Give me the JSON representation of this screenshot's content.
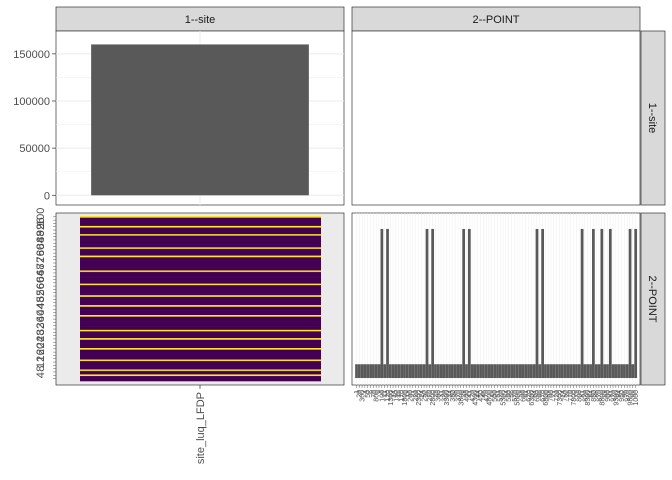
{
  "chart_data": {
    "type": "facet-grid",
    "facet_cols": [
      "1--site",
      "2--POINT"
    ],
    "facet_rows": [
      "1--site",
      "2--POINT"
    ],
    "panels": [
      {
        "row": "1--site",
        "col": "1--site",
        "type": "bar",
        "categories": [
          "site_luq_LFDP"
        ],
        "values": [
          160000
        ],
        "ylim": [
          0,
          170000
        ],
        "yticks": [
          0,
          50000,
          100000,
          150000
        ],
        "ytick_labels": [
          "0",
          "50000",
          "100000",
          "150000"
        ],
        "grid": true
      },
      {
        "row": "1--site",
        "col": "2--POINT",
        "type": "empty"
      },
      {
        "row": "2--POINT",
        "col": "1--site",
        "type": "heatmap",
        "x_category": "site_luq_LFDP",
        "x_tick_label": "site_luq_LFDP",
        "n_rows": 100,
        "colors": {
          "low": "#440154",
          "high": "#FDE725",
          "background": "#EBEBEB"
        },
        "high_rows": [
          0,
          6,
          11,
          19,
          24,
          33,
          41,
          48,
          54,
          60,
          69,
          74,
          80,
          87,
          93,
          96
        ]
      },
      {
        "row": "2--POINT",
        "col": "2--POINT",
        "type": "bar",
        "n_bars": 100,
        "bar_color": "#595959",
        "tall_value": 0.92,
        "short_value": 0.085,
        "tall_bars": [
          9,
          11,
          25,
          27,
          38,
          40,
          64,
          66,
          80,
          84,
          87,
          90,
          97,
          99
        ]
      }
    ]
  },
  "strips": {
    "top": [
      "1--site",
      "2--POINT"
    ],
    "right": [
      "1--site",
      "2--POINT"
    ]
  }
}
